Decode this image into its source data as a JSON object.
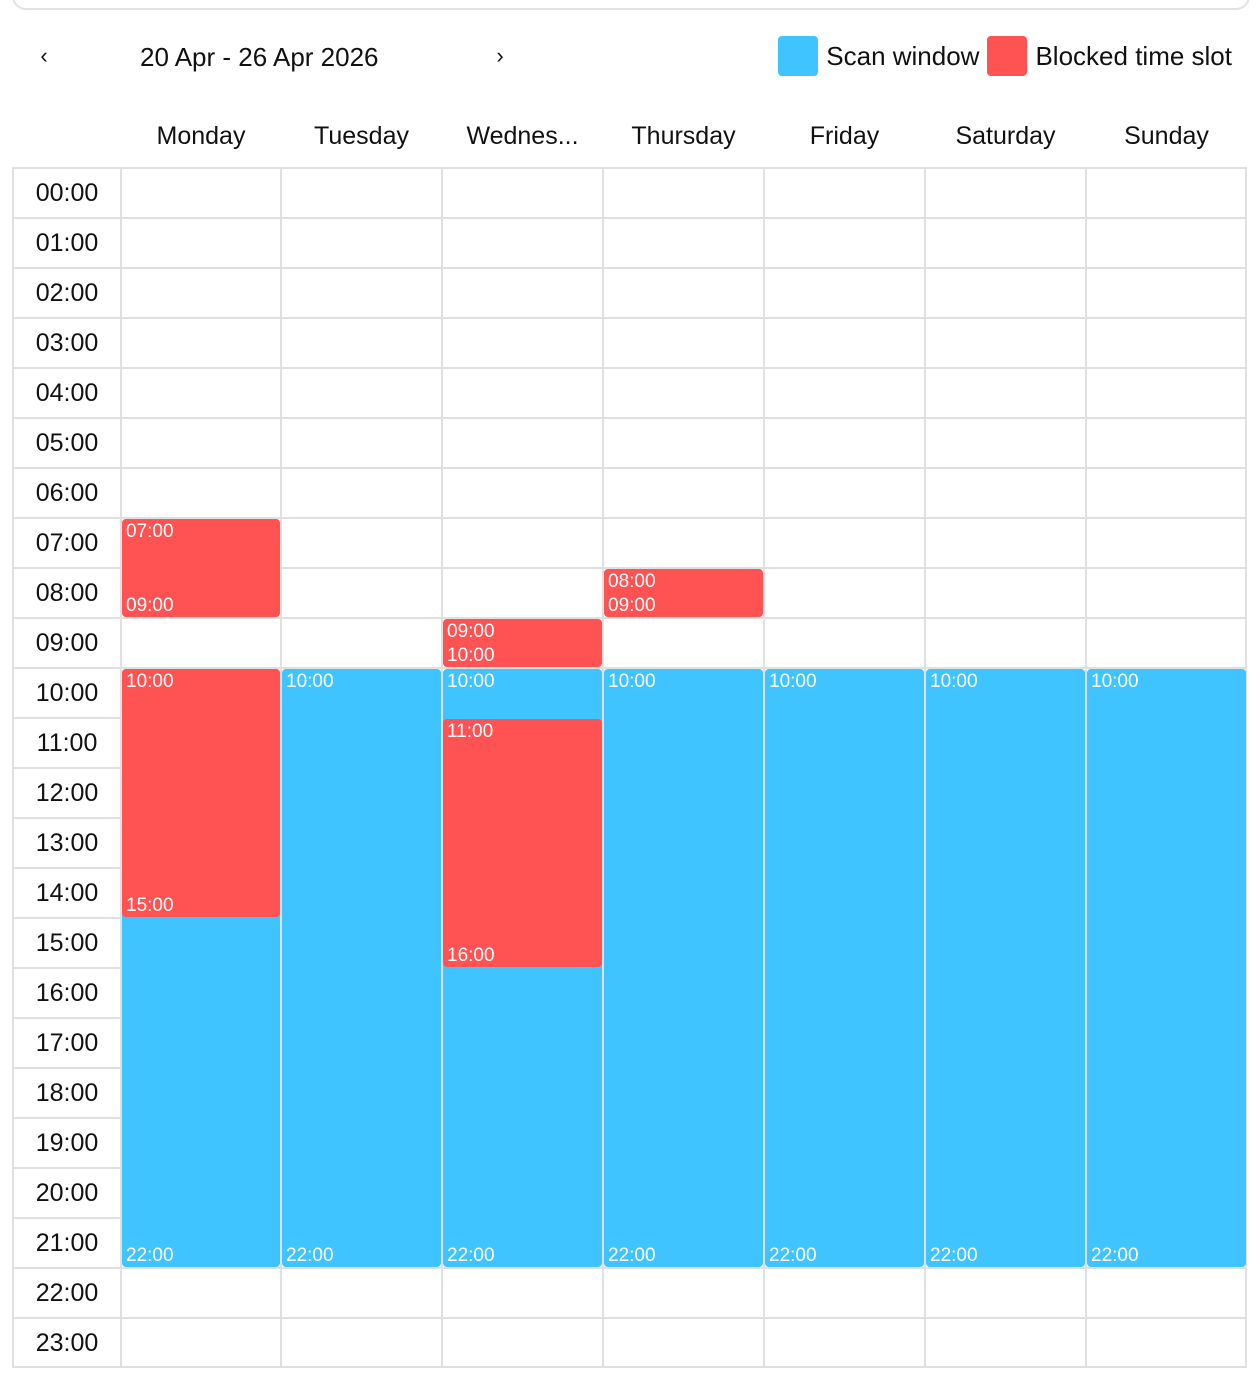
{
  "header": {
    "prev_icon": "‹",
    "next_icon": "›",
    "date_range": "20 Apr - 26 Apr 2026"
  },
  "legend": [
    {
      "label": "Scan window",
      "color": "#40C4FF"
    },
    {
      "label": "Blocked time slot",
      "color": "#FF5252"
    }
  ],
  "days": [
    "Monday",
    "Tuesday",
    "Wednes...",
    "Thursday",
    "Friday",
    "Saturday",
    "Sunday"
  ],
  "hours": [
    "00:00",
    "01:00",
    "02:00",
    "03:00",
    "04:00",
    "05:00",
    "06:00",
    "07:00",
    "08:00",
    "09:00",
    "10:00",
    "11:00",
    "12:00",
    "13:00",
    "14:00",
    "15:00",
    "16:00",
    "17:00",
    "18:00",
    "19:00",
    "20:00",
    "21:00",
    "22:00",
    "23:00"
  ],
  "events": [
    {
      "day": 0,
      "type": "scan",
      "start": "10:00",
      "end": "22:00"
    },
    {
      "day": 1,
      "type": "scan",
      "start": "10:00",
      "end": "22:00"
    },
    {
      "day": 2,
      "type": "scan",
      "start": "10:00",
      "end": "22:00"
    },
    {
      "day": 3,
      "type": "scan",
      "start": "10:00",
      "end": "22:00"
    },
    {
      "day": 4,
      "type": "scan",
      "start": "10:00",
      "end": "22:00"
    },
    {
      "day": 5,
      "type": "scan",
      "start": "10:00",
      "end": "22:00"
    },
    {
      "day": 6,
      "type": "scan",
      "start": "10:00",
      "end": "22:00"
    },
    {
      "day": 0,
      "type": "blocked",
      "start": "07:00",
      "end": "09:00"
    },
    {
      "day": 0,
      "type": "blocked",
      "start": "10:00",
      "end": "15:00"
    },
    {
      "day": 2,
      "type": "blocked",
      "start": "09:00",
      "end": "10:00"
    },
    {
      "day": 2,
      "type": "blocked",
      "start": "11:00",
      "end": "16:00"
    },
    {
      "day": 3,
      "type": "blocked",
      "start": "08:00",
      "end": "09:00"
    }
  ]
}
